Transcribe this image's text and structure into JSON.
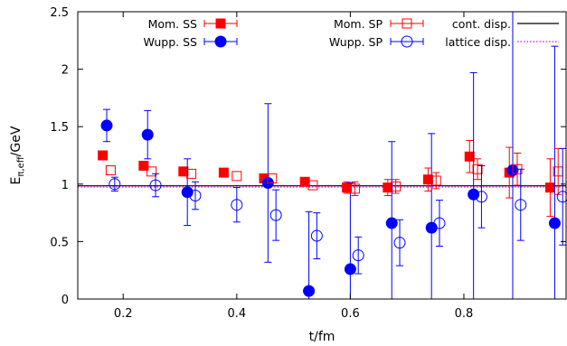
{
  "chart_data": {
    "type": "scatter",
    "xlabel": "t/fm",
    "ylabel": "E_{π,eff}/GeV",
    "ylabel_main": "E",
    "ylabel_sub": "π,eff",
    "ylabel_unit": "/GeV",
    "xlim": [
      0.12,
      0.98
    ],
    "ylim": [
      0,
      2.5
    ],
    "x_ticks": [
      0.2,
      0.4,
      0.6,
      0.8
    ],
    "x_tick_labels": [
      "0.2",
      "0.4",
      "0.6",
      "0.8"
    ],
    "y_ticks": [
      0,
      0.5,
      1,
      1.5,
      2,
      2.5
    ],
    "y_tick_labels": [
      "0",
      "0.5",
      "1",
      "1.5",
      "2",
      "2.5"
    ],
    "grid": false,
    "legend_position": "top",
    "lines": [
      {
        "name": "cont. disp.",
        "y": 0.985,
        "color": "#000000",
        "style": "solid"
      },
      {
        "name": "lattice disp.",
        "y": 0.975,
        "color": "#ff00ff",
        "style": "dotted"
      }
    ],
    "series": [
      {
        "name": "Mom. SS",
        "color": "#ff0000",
        "marker": "filled-square",
        "points": [
          {
            "x": 0.164,
            "y": 1.25,
            "err": 0.0
          },
          {
            "x": 0.236,
            "y": 1.16,
            "err": 0.0
          },
          {
            "x": 0.306,
            "y": 1.11,
            "err": 0.0
          },
          {
            "x": 0.377,
            "y": 1.1,
            "err": 0.0
          },
          {
            "x": 0.448,
            "y": 1.05,
            "err": 0.0
          },
          {
            "x": 0.52,
            "y": 1.02,
            "err": 0.0
          },
          {
            "x": 0.594,
            "y": 0.97,
            "err": 0.05
          },
          {
            "x": 0.666,
            "y": 0.97,
            "err": 0.07
          },
          {
            "x": 0.737,
            "y": 1.04,
            "err": 0.1
          },
          {
            "x": 0.81,
            "y": 1.24,
            "err": 0.14
          },
          {
            "x": 0.88,
            "y": 1.1,
            "err": 0.22
          },
          {
            "x": 0.952,
            "y": 0.97,
            "err": 0.25
          }
        ]
      },
      {
        "name": "Wupp. SS",
        "color": "#0000ff",
        "marker": "filled-circle",
        "points": [
          {
            "x": 0.171,
            "y": 1.51,
            "err": 0.14
          },
          {
            "x": 0.243,
            "y": 1.43,
            "err": 0.21
          },
          {
            "x": 0.313,
            "y": 0.93,
            "err": 0.29
          },
          {
            "x": 0.455,
            "y": 1.01,
            "err": 0.69
          },
          {
            "x": 0.527,
            "y": 0.07,
            "err": 0.69
          },
          {
            "x": 0.6,
            "y": 0.26,
            "err": 0.75
          },
          {
            "x": 0.673,
            "y": 0.66,
            "err": 0.71
          },
          {
            "x": 0.743,
            "y": 0.62,
            "err": 0.82
          },
          {
            "x": 0.817,
            "y": 0.91,
            "err": 1.06
          },
          {
            "x": 0.886,
            "y": 1.12,
            "err": 1.55
          },
          {
            "x": 0.96,
            "y": 0.66,
            "err": 1.54
          }
        ]
      },
      {
        "name": "Mom. SP",
        "color": "#ff0000",
        "marker": "open-square",
        "points": [
          {
            "x": 0.178,
            "y": 1.12,
            "err": 0.0
          },
          {
            "x": 0.25,
            "y": 1.11,
            "err": 0.0
          },
          {
            "x": 0.32,
            "y": 1.09,
            "err": 0.0
          },
          {
            "x": 0.4,
            "y": 1.07,
            "err": 0.0
          },
          {
            "x": 0.462,
            "y": 1.05,
            "err": 0.0
          },
          {
            "x": 0.534,
            "y": 0.99,
            "err": 0.0
          },
          {
            "x": 0.608,
            "y": 0.96,
            "err": 0.06
          },
          {
            "x": 0.68,
            "y": 0.98,
            "err": 0.06
          },
          {
            "x": 0.751,
            "y": 1.03,
            "err": 0.07
          },
          {
            "x": 0.824,
            "y": 1.13,
            "err": 0.09
          },
          {
            "x": 0.894,
            "y": 1.13,
            "err": 0.14
          },
          {
            "x": 0.966,
            "y": 1.11,
            "err": 0.2
          }
        ]
      },
      {
        "name": "Wupp. SP",
        "color": "#0000ff",
        "marker": "open-circle",
        "points": [
          {
            "x": 0.185,
            "y": 1.0,
            "err": 0.06
          },
          {
            "x": 0.257,
            "y": 0.99,
            "err": 0.1
          },
          {
            "x": 0.327,
            "y": 0.9,
            "err": 0.12
          },
          {
            "x": 0.4,
            "y": 0.82,
            "err": 0.15
          },
          {
            "x": 0.469,
            "y": 0.73,
            "err": 0.22
          },
          {
            "x": 0.541,
            "y": 0.55,
            "err": 0.2
          },
          {
            "x": 0.614,
            "y": 0.38,
            "err": 0.16
          },
          {
            "x": 0.687,
            "y": 0.49,
            "err": 0.2
          },
          {
            "x": 0.757,
            "y": 0.66,
            "err": 0.2
          },
          {
            "x": 0.831,
            "y": 0.89,
            "err": 0.27
          },
          {
            "x": 0.9,
            "y": 0.82,
            "err": 0.31
          },
          {
            "x": 0.974,
            "y": 0.89,
            "err": 0.42
          }
        ]
      }
    ]
  }
}
